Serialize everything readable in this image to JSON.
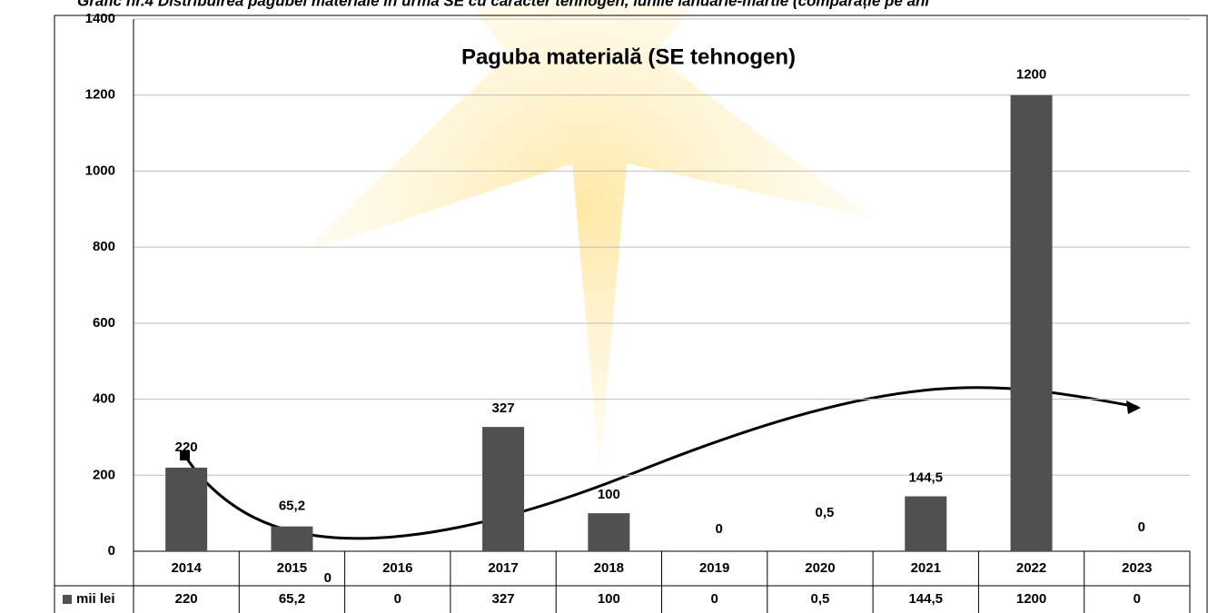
{
  "chart_data": {
    "type": "bar",
    "caption": "Grafic nr.4 Distribuirea pagubei materiale în urma SE cu caracter tehnogen, lunile ianuarie-martie (comparație pe ani",
    "title": "Paguba materială (SE tehnogen)",
    "categories": [
      "2014",
      "2015",
      "2016",
      "2017",
      "2018",
      "2019",
      "2020",
      "2021",
      "2022",
      "2023"
    ],
    "series": [
      {
        "name": "mii lei",
        "color": "#505050",
        "values": [
          220,
          65.2,
          0,
          327,
          100,
          0,
          0.5,
          144.5,
          1200,
          0
        ],
        "value_labels": [
          "220",
          "65,2",
          "0",
          "327",
          "100",
          "0",
          "0,5",
          "144,5",
          "1200",
          "0"
        ]
      }
    ],
    "ylim": [
      0,
      1400
    ],
    "yticks": [
      0,
      200,
      400,
      600,
      800,
      1000,
      1200,
      1400
    ],
    "grid": true
  }
}
